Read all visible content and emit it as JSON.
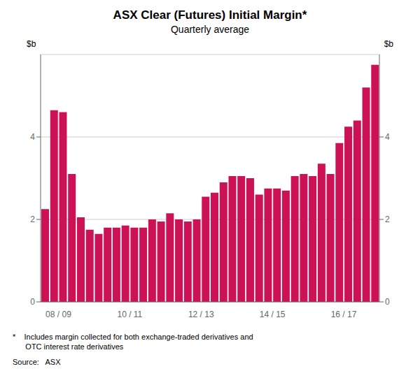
{
  "chart_data": {
    "type": "bar",
    "title": "ASX Clear (Futures) Initial Margin*",
    "subtitle": "Quarterly average",
    "ylabel": "$b",
    "categories": [
      null,
      "08 / 09",
      null,
      null,
      null,
      null,
      null,
      null,
      null,
      "10 / 11",
      null,
      null,
      null,
      null,
      null,
      null,
      null,
      "12 / 13",
      null,
      null,
      null,
      null,
      null,
      null,
      null,
      "14 / 15",
      null,
      null,
      null,
      null,
      null,
      null,
      null,
      "16 / 17",
      null,
      null,
      null,
      null
    ],
    "values": [
      2.25,
      4.65,
      4.6,
      3.1,
      2.05,
      1.75,
      1.65,
      1.8,
      1.8,
      1.85,
      1.8,
      1.8,
      2.0,
      1.95,
      2.15,
      2.0,
      1.95,
      2.0,
      2.55,
      2.65,
      2.9,
      3.05,
      3.05,
      3.0,
      2.6,
      2.75,
      2.75,
      2.7,
      3.05,
      3.1,
      3.05,
      3.35,
      3.1,
      3.85,
      4.25,
      4.4,
      5.2,
      5.75
    ],
    "color": "#CC1155",
    "ylim": [
      0,
      6
    ],
    "yticks": [
      0,
      2,
      4
    ],
    "grid": true,
    "annotations": [
      "*    Includes margin collected for both exchange-traded derivatives and",
      "      OTC interest rate derivatives",
      "Source:   ASX"
    ]
  }
}
